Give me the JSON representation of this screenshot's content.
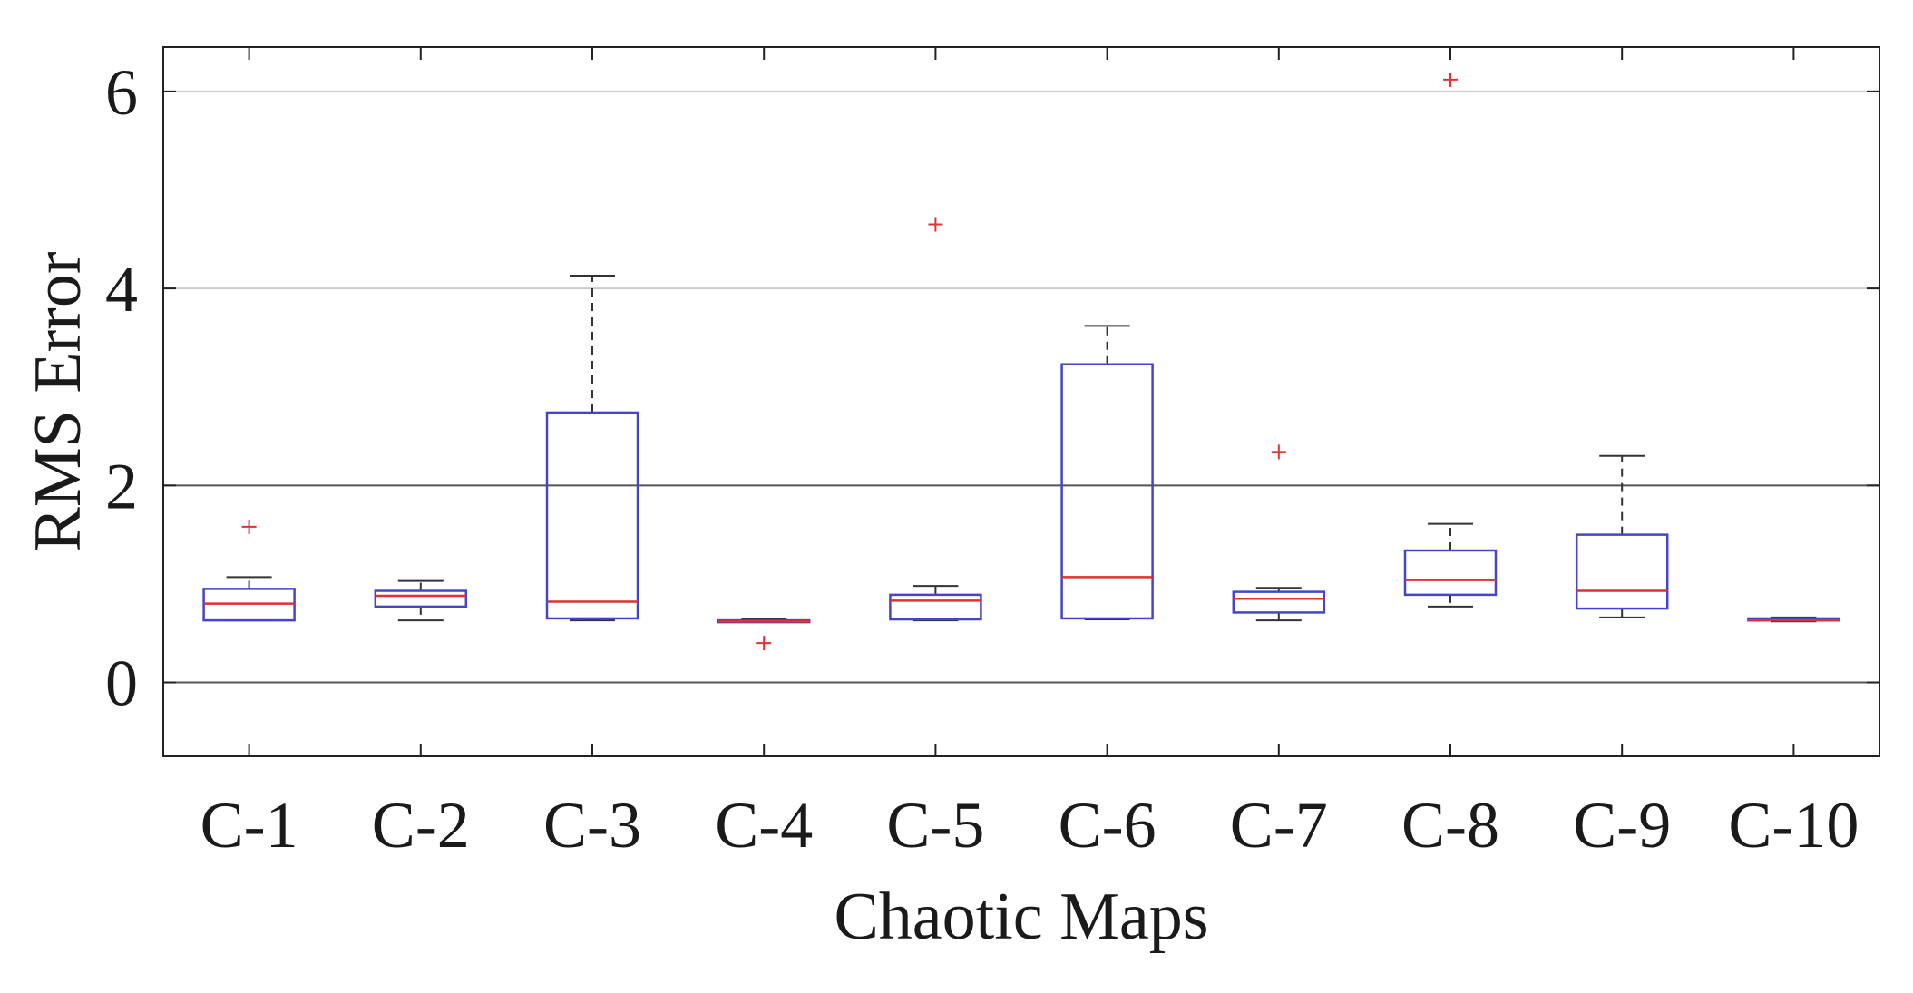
{
  "chart_data": {
    "type": "boxplot",
    "title": "",
    "xlabel": "Chaotic Maps",
    "ylabel": "RMS Error",
    "ylim": [
      -0.75,
      6.45
    ],
    "yticks": [
      0,
      2,
      4,
      6
    ],
    "ytick_labels": [
      "0",
      "2",
      "4",
      "6"
    ],
    "grid": {
      "horizontal": true,
      "vertical": false
    },
    "colors": {
      "box": "#4444cc",
      "median": "#e03030",
      "whisker": "#333333",
      "outlier": "#e03030",
      "grid": "#cccccc"
    },
    "categories": [
      "C-1",
      "C-2",
      "C-3",
      "C-4",
      "C-5",
      "C-6",
      "C-7",
      "C-8",
      "C-9",
      "C-10"
    ],
    "boxes": [
      {
        "label": "C-1",
        "whisker_low": 0.63,
        "q1": 0.63,
        "median": 0.8,
        "q3": 0.95,
        "whisker_high": 1.07,
        "outliers": [
          1.58
        ]
      },
      {
        "label": "C-2",
        "whisker_low": 0.63,
        "q1": 0.77,
        "median": 0.88,
        "q3": 0.93,
        "whisker_high": 1.03,
        "outliers": []
      },
      {
        "label": "C-3",
        "whisker_low": 0.63,
        "q1": 0.65,
        "median": 0.82,
        "q3": 2.74,
        "whisker_high": 4.13,
        "outliers": []
      },
      {
        "label": "C-4",
        "whisker_low": 0.62,
        "q1": 0.62,
        "median": 0.62,
        "q3": 0.63,
        "whisker_high": 0.64,
        "outliers": [
          0.4
        ]
      },
      {
        "label": "C-5",
        "whisker_low": 0.63,
        "q1": 0.64,
        "median": 0.83,
        "q3": 0.89,
        "whisker_high": 0.98,
        "outliers": [
          4.65
        ]
      },
      {
        "label": "C-6",
        "whisker_low": 0.64,
        "q1": 0.65,
        "median": 1.07,
        "q3": 3.23,
        "whisker_high": 3.62,
        "outliers": []
      },
      {
        "label": "C-7",
        "whisker_low": 0.63,
        "q1": 0.71,
        "median": 0.85,
        "q3": 0.92,
        "whisker_high": 0.96,
        "outliers": [
          2.34
        ]
      },
      {
        "label": "C-8",
        "whisker_low": 0.77,
        "q1": 0.89,
        "median": 1.04,
        "q3": 1.34,
        "whisker_high": 1.61,
        "outliers": [
          6.12
        ]
      },
      {
        "label": "C-9",
        "whisker_low": 0.66,
        "q1": 0.75,
        "median": 0.93,
        "q3": 1.5,
        "whisker_high": 2.3,
        "outliers": []
      },
      {
        "label": "C-10",
        "whisker_low": 0.62,
        "q1": 0.63,
        "median": 0.63,
        "q3": 0.65,
        "whisker_high": 0.66,
        "outliers": []
      }
    ]
  }
}
